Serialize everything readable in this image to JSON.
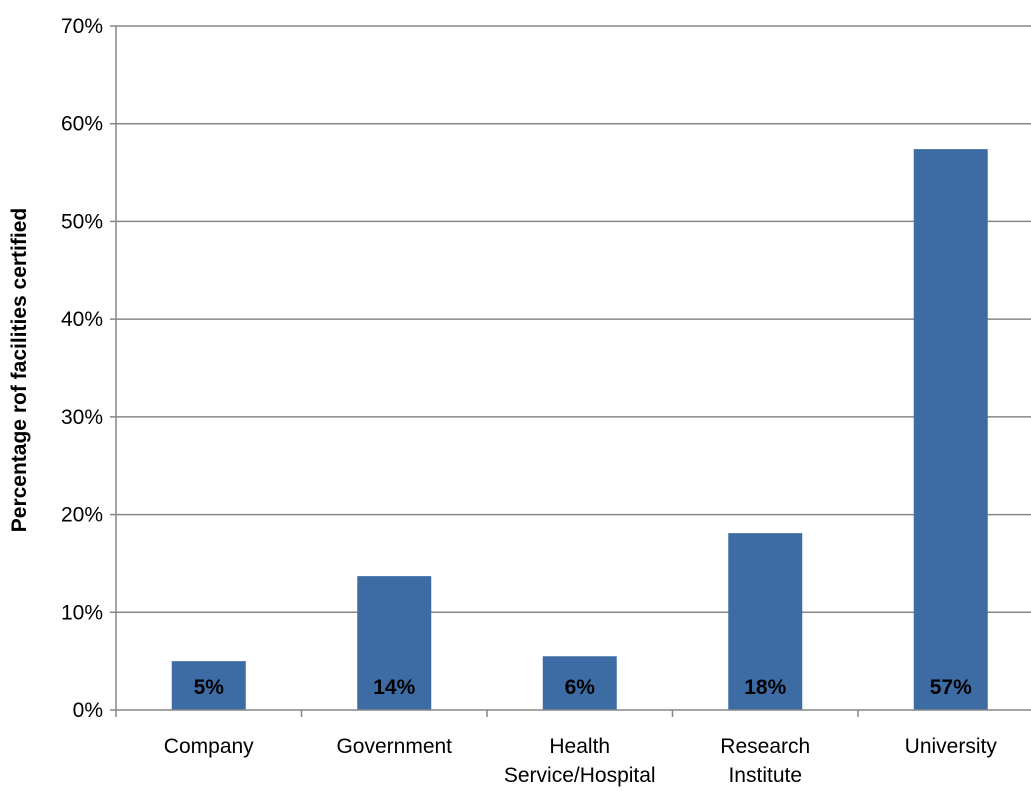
{
  "chart_data": {
    "type": "bar",
    "title": "",
    "xlabel": "",
    "ylabel": "Percentage rof facilities certified",
    "categories": [
      "Company",
      "Government",
      "Health\nService/Hospital",
      "Research\nInstitute",
      "University"
    ],
    "values": [
      5,
      14,
      6,
      18,
      57
    ],
    "bar_heights": [
      5.0,
      13.7,
      5.5,
      18.1,
      57.4
    ],
    "data_labels": [
      "5%",
      "14%",
      "6%",
      "18%",
      "57%"
    ],
    "ylim": [
      0,
      70
    ],
    "yticks": [
      0,
      10,
      20,
      30,
      40,
      50,
      60,
      70
    ],
    "ytick_labels": [
      "0%",
      "10%",
      "20%",
      "30%",
      "40%",
      "50%",
      "60%",
      "70%"
    ],
    "grid": true,
    "legend": "none",
    "bar_color": "#3d6ca5",
    "grid_color": "#868686"
  }
}
